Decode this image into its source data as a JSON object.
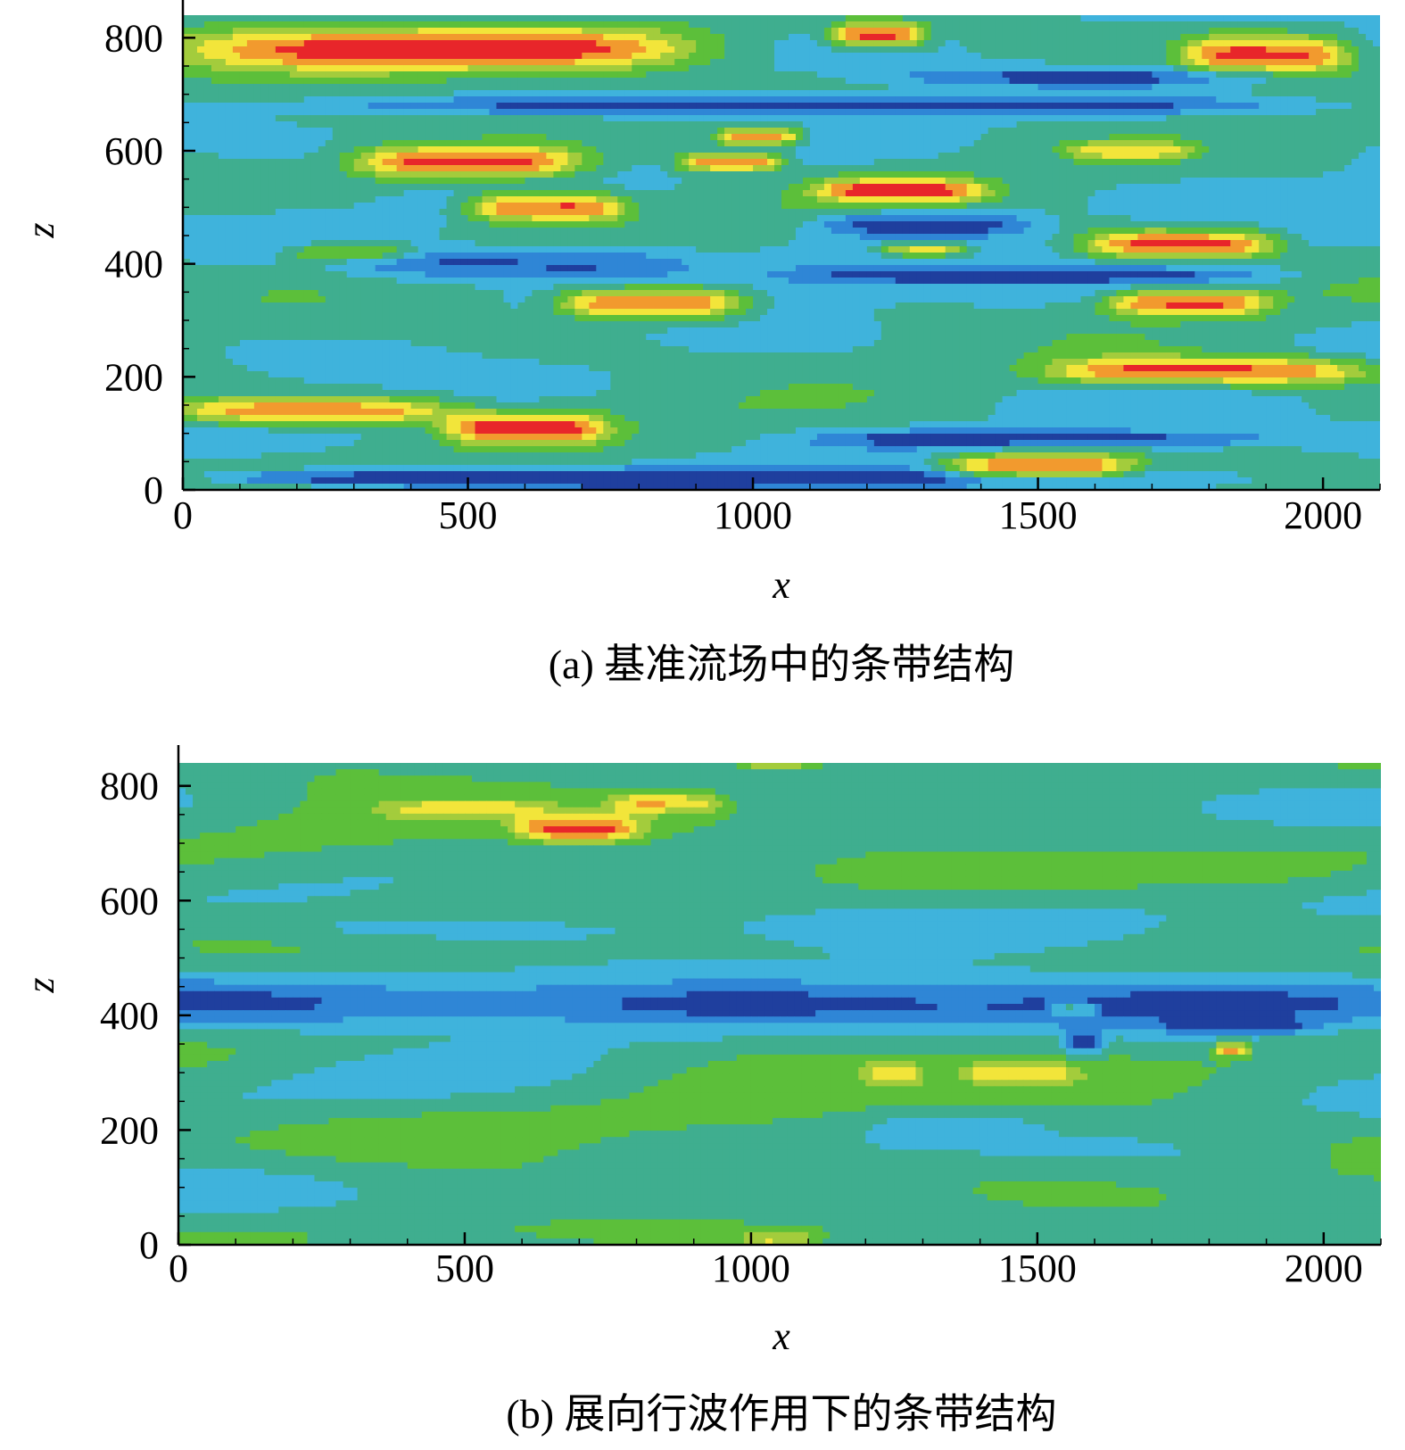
{
  "chart_data": [
    {
      "type": "heatmap",
      "panel": "a",
      "caption": "(a) 基准流场中的条带结构",
      "xlabel": "x",
      "ylabel": "z",
      "xlim": [
        0,
        2100
      ],
      "ylim": [
        0,
        840
      ],
      "xticks": [
        0,
        500,
        1000,
        1500,
        2000
      ],
      "yticks": [
        0,
        200,
        400,
        600,
        800
      ],
      "colormap": [
        "#1f3f9e",
        "#2f86d6",
        "#3fb3dc",
        "#3fae8f",
        "#5cbf3a",
        "#a3cc3c",
        "#f2e53a",
        "#f29a2e",
        "#e8262a"
      ],
      "background_level": 0.35,
      "streaks": [
        {
          "x": 450,
          "z": 780,
          "len": 900,
          "wid": 40,
          "amp": 0.65
        },
        {
          "x": 1220,
          "z": 805,
          "len": 170,
          "wid": 20,
          "amp": 0.6
        },
        {
          "x": 1900,
          "z": 770,
          "len": 300,
          "wid": 35,
          "amp": 0.6
        },
        {
          "x": 500,
          "z": 580,
          "len": 400,
          "wid": 28,
          "amp": 0.6
        },
        {
          "x": 960,
          "z": 580,
          "len": 180,
          "wid": 16,
          "amp": 0.55
        },
        {
          "x": 1010,
          "z": 625,
          "len": 150,
          "wid": 15,
          "amp": 0.55
        },
        {
          "x": 640,
          "z": 500,
          "len": 280,
          "wid": 25,
          "amp": 0.6
        },
        {
          "x": 1260,
          "z": 530,
          "len": 300,
          "wid": 20,
          "amp": 0.55
        },
        {
          "x": 1750,
          "z": 435,
          "len": 330,
          "wid": 24,
          "amp": 0.6
        },
        {
          "x": 820,
          "z": 330,
          "len": 320,
          "wid": 26,
          "amp": 0.6
        },
        {
          "x": 1760,
          "z": 330,
          "len": 280,
          "wid": 22,
          "amp": 0.55
        },
        {
          "x": 1800,
          "z": 210,
          "len": 560,
          "wid": 24,
          "amp": 0.6
        },
        {
          "x": 220,
          "z": 140,
          "len": 500,
          "wid": 24,
          "amp": 0.55
        },
        {
          "x": 600,
          "z": 110,
          "len": 280,
          "wid": 26,
          "amp": 0.6
        },
        {
          "x": 1500,
          "z": 40,
          "len": 330,
          "wid": 22,
          "amp": 0.6
        },
        {
          "x": 1660,
          "z": 600,
          "len": 220,
          "wid": 16,
          "amp": 0.35
        },
        {
          "x": 1300,
          "z": 425,
          "len": 160,
          "wid": 12,
          "amp": 0.4
        },
        {
          "x": 300,
          "z": 420,
          "len": 220,
          "wid": 14,
          "amp": 0.3
        },
        {
          "x": 1300,
          "z": 470,
          "len": 380,
          "wid": 22,
          "amp": -0.35
        },
        {
          "x": 600,
          "z": 400,
          "len": 600,
          "wid": 28,
          "amp": -0.3
        },
        {
          "x": 1000,
          "z": 20,
          "len": 1600,
          "wid": 18,
          "amp": -0.3
        },
        {
          "x": 1100,
          "z": 680,
          "len": 1800,
          "wid": 16,
          "amp": -0.28
        },
        {
          "x": 1600,
          "z": 730,
          "len": 700,
          "wid": 16,
          "amp": -0.25
        },
        {
          "x": 1500,
          "z": 90,
          "len": 800,
          "wid": 16,
          "amp": -0.3
        },
        {
          "x": 1500,
          "z": 380,
          "len": 900,
          "wid": 16,
          "amp": -0.28
        },
        {
          "x": 300,
          "z": 20,
          "len": 500,
          "wid": 14,
          "amp": -0.25
        }
      ]
    },
    {
      "type": "heatmap",
      "panel": "b",
      "caption": "(b) 展向行波作用下的条带结构",
      "xlabel": "x",
      "ylabel": "z",
      "xlim": [
        0,
        2100
      ],
      "ylim": [
        0,
        840
      ],
      "xticks": [
        0,
        500,
        1000,
        1500,
        2000
      ],
      "yticks": [
        0,
        200,
        400,
        600,
        800
      ],
      "colormap": [
        "#1f3f9e",
        "#2f86d6",
        "#3fb3dc",
        "#3fae8f",
        "#5cbf3a",
        "#a3cc3c",
        "#f2e53a",
        "#f29a2e",
        "#e8262a"
      ],
      "background_level": 0.38,
      "streaks": [
        {
          "x": 1050,
          "z": 420,
          "len": 2600,
          "wid": 45,
          "amp": -0.3
        },
        {
          "x": 500,
          "z": 720,
          "len": 900,
          "wid": 60,
          "amp": 0.12
        },
        {
          "x": 700,
          "z": 725,
          "len": 220,
          "wid": 22,
          "amp": 0.45
        },
        {
          "x": 850,
          "z": 770,
          "len": 200,
          "wid": 18,
          "amp": 0.32
        },
        {
          "x": 1050,
          "z": 840,
          "len": 150,
          "wid": 15,
          "amp": 0.28
        },
        {
          "x": 500,
          "z": 760,
          "len": 300,
          "wid": 16,
          "amp": 0.22
        },
        {
          "x": 1560,
          "z": 410,
          "len": 80,
          "wid": 10,
          "amp": 0.3
        },
        {
          "x": 1470,
          "z": 300,
          "len": 200,
          "wid": 16,
          "amp": 0.28
        },
        {
          "x": 1840,
          "z": 340,
          "len": 60,
          "wid": 12,
          "amp": 0.4
        },
        {
          "x": 1250,
          "z": 300,
          "len": 100,
          "wid": 18,
          "amp": 0.22
        },
        {
          "x": 1580,
          "z": 350,
          "len": 70,
          "wid": 20,
          "amp": -0.3
        },
        {
          "x": 1850,
          "z": 380,
          "len": 260,
          "wid": 14,
          "amp": -0.25
        },
        {
          "x": 1300,
          "z": 300,
          "len": 800,
          "wid": 60,
          "amp": 0.1
        },
        {
          "x": 700,
          "z": 210,
          "len": 1000,
          "wid": 60,
          "amp": 0.08
        },
        {
          "x": 1000,
          "z": 20,
          "len": 1200,
          "wid": 30,
          "amp": 0.1
        },
        {
          "x": 1050,
          "z": 10,
          "len": 120,
          "wid": 10,
          "amp": 0.25
        },
        {
          "x": 1300,
          "z": 560,
          "len": 800,
          "wid": 30,
          "amp": -0.1
        },
        {
          "x": 1550,
          "z": 650,
          "len": 900,
          "wid": 30,
          "amp": 0.1
        },
        {
          "x": 500,
          "z": 550,
          "len": 700,
          "wid": 20,
          "amp": -0.1
        },
        {
          "x": 1350,
          "z": 200,
          "len": 300,
          "wid": 30,
          "amp": -0.1
        },
        {
          "x": 1800,
          "z": 100,
          "len": 800,
          "wid": 40,
          "amp": 0.08
        },
        {
          "x": 200,
          "z": 100,
          "len": 600,
          "wid": 50,
          "amp": -0.04
        }
      ]
    }
  ]
}
